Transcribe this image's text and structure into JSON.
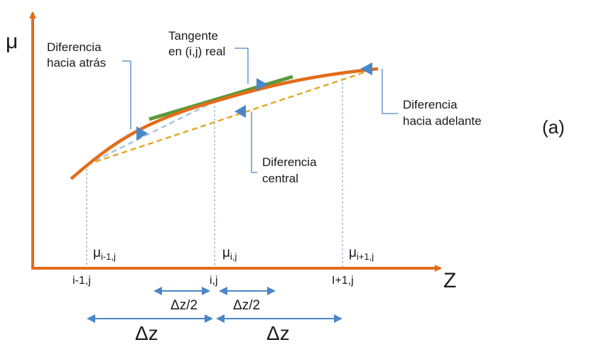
{
  "axes": {
    "y_label": "μ",
    "x_label": "Z"
  },
  "panel_label": "(a)",
  "callouts": {
    "backward": [
      "Diferencia",
      "hacia atrás"
    ],
    "tangent": [
      "Tangente",
      "en (i,j) real"
    ],
    "forward": [
      "Diferencia",
      "hacia adelante"
    ],
    "central": [
      "Diferencia",
      "central"
    ]
  },
  "nodes": [
    {
      "mu": "μ",
      "mu_sub": "i-1,j",
      "x_label": "i-1,j"
    },
    {
      "mu": "μ",
      "mu_sub": "i,j",
      "x_label": "i,j"
    },
    {
      "mu": "μ",
      "mu_sub": "i+1,j",
      "x_label": "I+1,j"
    }
  ],
  "spacing": {
    "half_left": "Δz/2",
    "half_right": "Δz/2",
    "full_left": "Δz",
    "full_right": "Δz"
  },
  "colors": {
    "axis": "#e36c1a",
    "curve": "#e36c1a",
    "tangent": "#5b9a3a",
    "central": "#e3a92a",
    "backward": "#a9c3e0",
    "callout": "#4a86c8",
    "guide": "#6a9bd0"
  }
}
